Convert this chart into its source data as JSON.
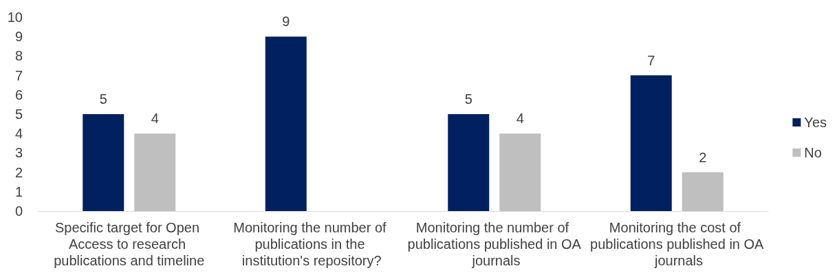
{
  "chart_data": {
    "type": "bar",
    "categories": [
      "Specific target for Open Access to research publications and timeline",
      "Monitoring the number of publications in the institution's repository?",
      "Monitoring the number of publications published in OA journals",
      "Monitoring the cost of publications published in OA journals"
    ],
    "series": [
      {
        "name": "Yes",
        "color": "#002060",
        "values": [
          5,
          9,
          5,
          7
        ]
      },
      {
        "name": "No",
        "color": "#bfbfbf",
        "values": [
          4,
          null,
          4,
          2
        ]
      }
    ],
    "ylim": [
      0,
      10
    ],
    "yticks": [
      0,
      1,
      2,
      3,
      4,
      5,
      6,
      7,
      8,
      9,
      10
    ],
    "grid": false,
    "legend": "right",
    "data_labels": true
  }
}
